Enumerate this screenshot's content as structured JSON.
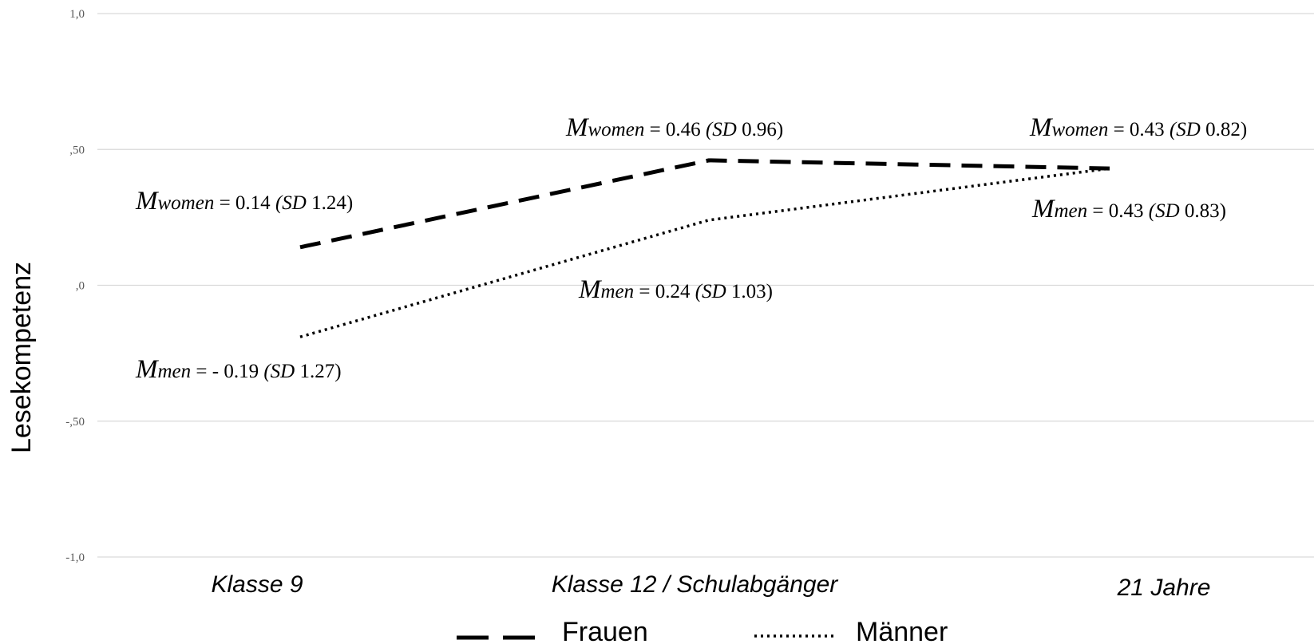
{
  "chart_data": {
    "type": "line",
    "ylabel": "Lesekompetenz",
    "ylim": [
      -1.0,
      1.0
    ],
    "yticks": [
      {
        "value": 1.0,
        "label": "1,0"
      },
      {
        "value": 0.5,
        "label": ",50"
      },
      {
        "value": 0.0,
        "label": ",0"
      },
      {
        "value": -0.5,
        "label": "-,50"
      },
      {
        "value": -1.0,
        "label": "-1,0"
      }
    ],
    "categories": [
      "Klasse 9",
      "Klasse 12 / Schulabgänger",
      "21 Jahre"
    ],
    "grid": true,
    "legend_position": "bottom",
    "series": [
      {
        "name": "Frauen",
        "style": "dashed",
        "values": [
          0.14,
          0.46,
          0.43
        ],
        "annotations": [
          {
            "m": "M",
            "sub": "women",
            "mid": " = 0.14 ",
            "sd": "(SD",
            "end": " 1.24)"
          },
          {
            "m": "M",
            "sub": "women",
            "mid": " = 0.46 ",
            "sd": "(SD",
            "end": " 0.96)"
          },
          {
            "m": "M",
            "sub": "women",
            "mid": " = 0.43 ",
            "sd": "(SD",
            "end": " 0.82)"
          }
        ]
      },
      {
        "name": "Männer",
        "style": "dotted",
        "values": [
          -0.19,
          0.24,
          0.43
        ],
        "annotations": [
          {
            "m": "M",
            "sub": "men",
            "mid": " = - 0.19 ",
            "sd": "(SD",
            "end": " 1.27)"
          },
          {
            "m": "M",
            "sub": "men",
            "mid": " = 0.24 ",
            "sd": "(SD",
            "end": " 1.03)"
          },
          {
            "m": "M",
            "sub": "men",
            "mid": " = 0.43 ",
            "sd": "(SD",
            "end": " 0.83)"
          }
        ]
      }
    ],
    "colors": {
      "line": "#000000",
      "grid": "#d9d9d9",
      "tick": "#595959"
    }
  }
}
